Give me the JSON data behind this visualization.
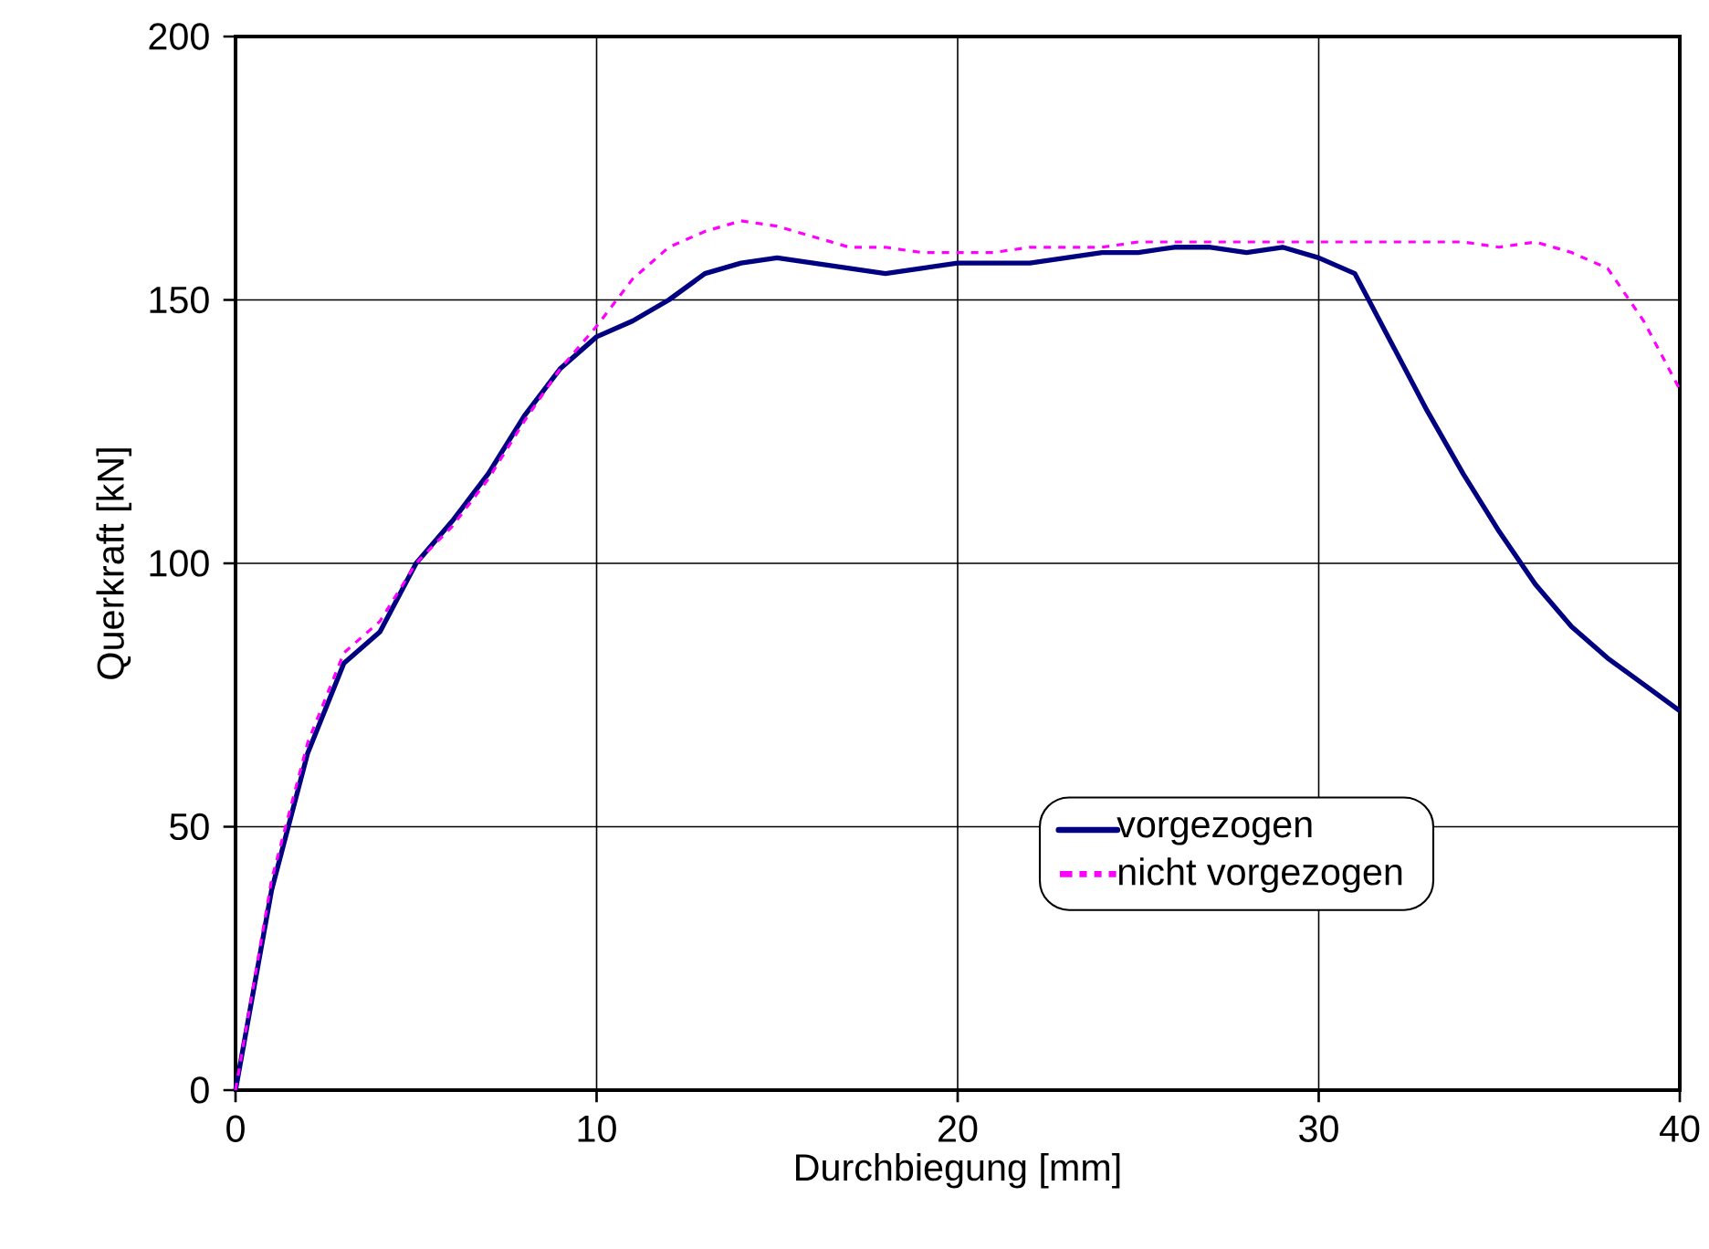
{
  "chart_data": {
    "type": "line",
    "xlabel": "Durchbiegung [mm]",
    "ylabel": "Querkraft [kN]",
    "x": [
      0,
      1,
      2,
      3,
      4,
      5,
      6,
      7,
      8,
      9,
      10,
      11,
      12,
      13,
      14,
      15,
      16,
      17,
      18,
      19,
      20,
      21,
      22,
      23,
      24,
      25,
      26,
      27,
      28,
      29,
      30,
      31,
      32,
      33,
      34,
      35,
      36,
      37,
      38,
      39,
      40
    ],
    "series": [
      {
        "name": "vorgezogen",
        "color": "#000080",
        "line_style": "solid",
        "values": [
          0,
          38,
          64,
          81,
          87,
          100,
          108,
          117,
          128,
          137,
          143,
          146,
          150,
          155,
          157,
          158,
          157,
          156,
          155,
          156,
          157,
          157,
          157,
          158,
          159,
          159,
          160,
          160,
          159,
          160,
          158,
          155,
          142,
          129,
          117,
          106,
          96,
          88,
          82,
          77,
          72
        ]
      },
      {
        "name": "nicht vorgezogen",
        "color": "#ff00ff",
        "line_style": "dashed",
        "values": [
          0,
          40,
          66,
          83,
          89,
          100,
          107,
          116,
          127,
          137,
          145,
          154,
          160,
          163,
          165,
          164,
          162,
          160,
          160,
          159,
          159,
          159,
          160,
          160,
          160,
          161,
          161,
          161,
          161,
          161,
          161,
          161,
          161,
          161,
          161,
          160,
          161,
          159,
          156,
          146,
          133
        ]
      }
    ],
    "xlim": [
      0,
      40
    ],
    "xticks": [
      0,
      10,
      20,
      30,
      40
    ],
    "ylim": [
      0,
      200
    ],
    "yticks": [
      0,
      50,
      100,
      150,
      200
    ],
    "grid": true,
    "legend": "bottom right",
    "marker": "none"
  }
}
